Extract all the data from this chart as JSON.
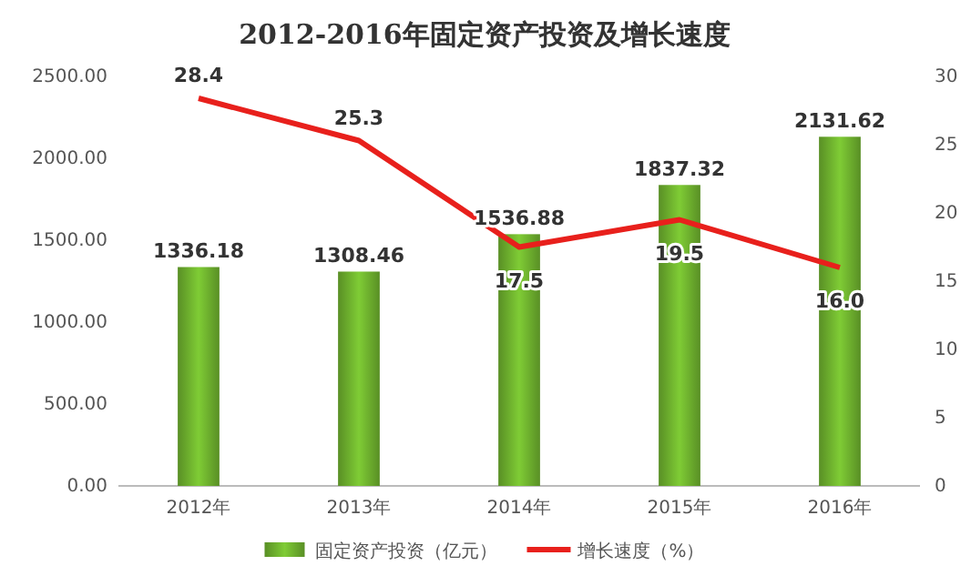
{
  "chart_data": {
    "type": "bar",
    "title": "2012-2016年固定资产投资及增长速度",
    "categories": [
      "2012年",
      "2013年",
      "2014年",
      "2015年",
      "2016年"
    ],
    "series": [
      {
        "name": "固定资产投资（亿元）",
        "color": "#6aab2c",
        "values": [
          1336.18,
          1308.46,
          1536.88,
          1837.32,
          2131.62
        ],
        "value_labels": [
          "1336.18",
          "1308.46",
          "1536.88",
          "1837.32",
          "2131.62"
        ]
      },
      {
        "name": "增长速度（%）",
        "type": "line",
        "axis": "y2",
        "color": "#e8201c",
        "values": [
          28.4,
          25.3,
          17.5,
          19.5,
          16.0
        ],
        "value_labels": [
          "28.4",
          "25.3",
          "17.5",
          "19.5",
          "16.0"
        ]
      }
    ],
    "ylim": [
      0,
      2500
    ],
    "yticks": [
      {
        "value": 0,
        "label": "0.00"
      },
      {
        "value": 500,
        "label": "500.00"
      },
      {
        "value": 1000,
        "label": "1000.00"
      },
      {
        "value": 1500,
        "label": "1500.00"
      },
      {
        "value": 2000,
        "label": "2000.00"
      },
      {
        "value": 2500,
        "label": "2500.00"
      }
    ],
    "y2lim": [
      0,
      30
    ],
    "y2ticks": [
      0,
      5,
      10,
      15,
      20,
      25,
      30
    ],
    "legend": "bottom",
    "marker": "none",
    "line_style": "solid"
  }
}
